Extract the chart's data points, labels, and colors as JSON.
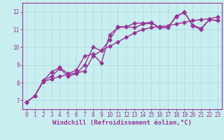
{
  "xlabel": "Windchill (Refroidissement éolien,°C)",
  "ylabel": "",
  "background_color": "#c8eef0",
  "grid_color": "#b0dde0",
  "line_color": "#993399",
  "xlim": [
    -0.5,
    23.5
  ],
  "ylim": [
    6.5,
    12.5
  ],
  "yticks": [
    7,
    8,
    9,
    10,
    11,
    12
  ],
  "xticks": [
    0,
    1,
    2,
    3,
    4,
    5,
    6,
    7,
    8,
    9,
    10,
    11,
    12,
    13,
    14,
    15,
    16,
    17,
    18,
    19,
    20,
    21,
    22,
    23
  ],
  "series1_x": [
    0,
    1,
    2,
    3,
    4,
    5,
    6,
    7,
    8,
    9,
    10,
    11,
    12,
    13,
    14,
    15,
    16,
    17,
    18,
    19,
    20,
    21,
    22,
    23
  ],
  "series1_y": [
    6.9,
    7.25,
    8.05,
    8.2,
    8.35,
    8.45,
    8.55,
    8.65,
    9.5,
    9.8,
    10.05,
    10.3,
    10.55,
    10.8,
    11.0,
    11.1,
    11.15,
    11.2,
    11.3,
    11.4,
    11.5,
    11.55,
    11.6,
    11.7
  ],
  "series2_x": [
    0,
    1,
    2,
    3,
    4,
    5,
    6,
    7,
    8,
    9,
    10,
    11,
    12,
    13,
    14,
    15,
    16,
    17,
    18,
    19,
    20,
    21,
    22,
    23
  ],
  "series2_y": [
    6.9,
    7.25,
    8.1,
    8.35,
    8.8,
    8.35,
    8.5,
    9.0,
    10.0,
    9.8,
    10.4,
    11.15,
    11.15,
    11.1,
    11.3,
    11.35,
    11.1,
    11.1,
    11.75,
    11.95,
    11.25,
    11.05,
    11.55,
    11.5
  ],
  "series3_x": [
    0,
    1,
    2,
    3,
    4,
    5,
    6,
    7,
    8,
    9,
    10,
    11,
    12,
    13,
    14,
    15,
    16,
    17,
    18,
    19,
    20,
    21,
    22,
    23
  ],
  "series3_y": [
    6.9,
    7.25,
    8.1,
    8.6,
    8.85,
    8.5,
    8.7,
    9.5,
    9.6,
    9.1,
    10.7,
    11.1,
    11.15,
    11.35,
    11.35,
    11.4,
    11.1,
    11.1,
    11.7,
    12.0,
    11.2,
    11.0,
    11.55,
    11.5
  ],
  "tick_fontsize": 5.5,
  "xlabel_fontsize": 6.5,
  "line_width": 1.0,
  "marker_size": 2.5
}
